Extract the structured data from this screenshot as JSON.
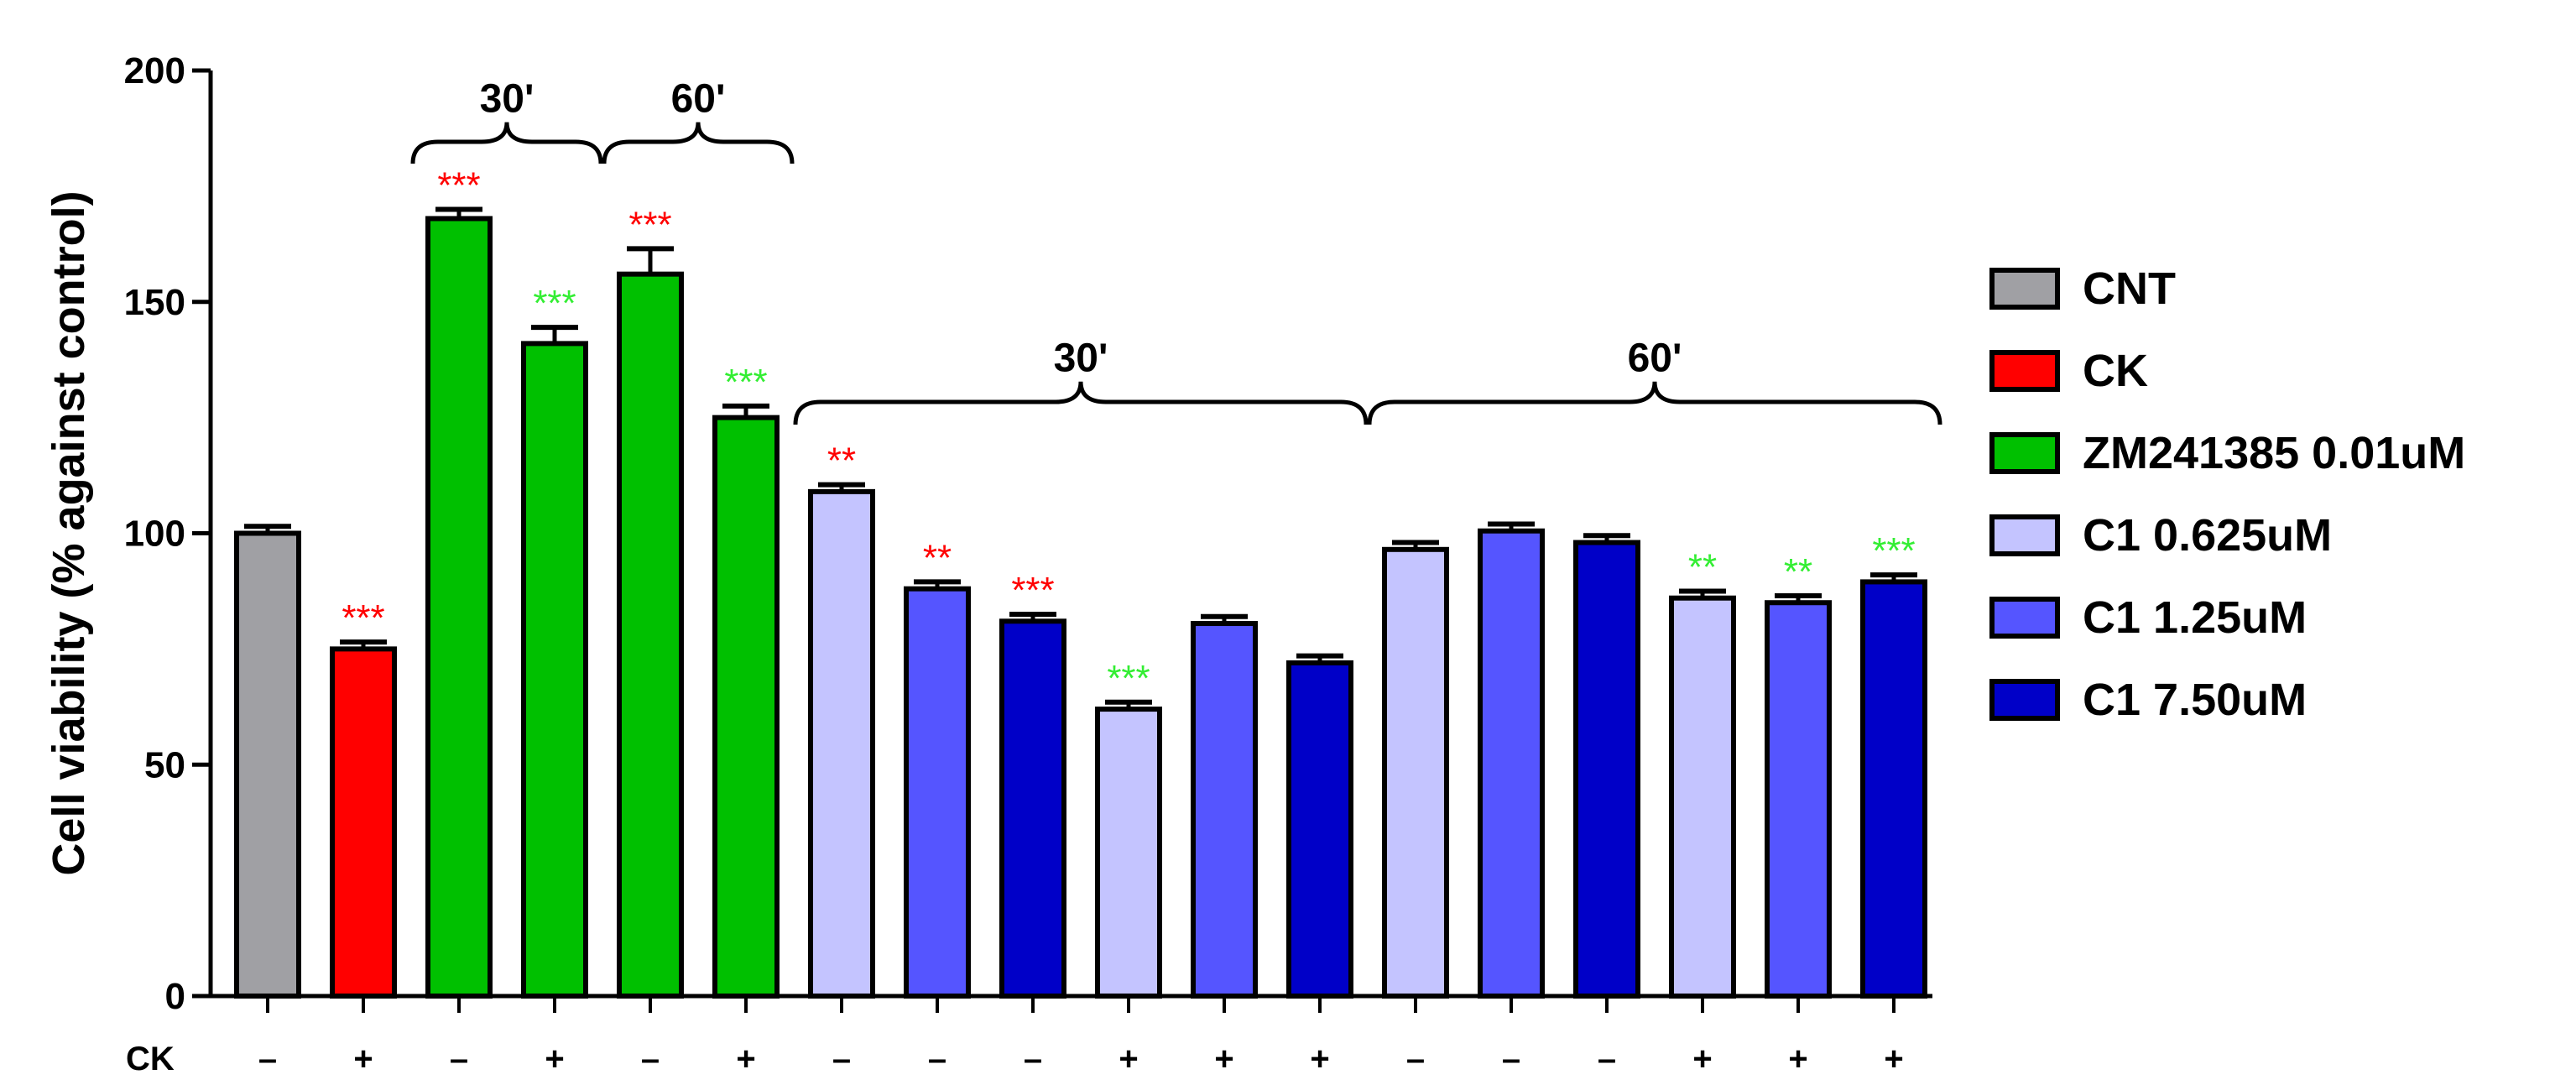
{
  "chart_data": {
    "type": "bar",
    "ylabel": "Cell viability (% against control)",
    "ylim": [
      0,
      200
    ],
    "yticks": [
      0,
      50,
      100,
      150,
      200
    ],
    "row_label": "CK",
    "bars": [
      {
        "value": 100,
        "error": 1.5,
        "color": "#a0a0a4",
        "ck": "–",
        "sig": "",
        "sig_color": ""
      },
      {
        "value": 75,
        "error": 1.5,
        "color": "#ff0000",
        "ck": "+",
        "sig": "***",
        "sig_color": "#ff0000"
      },
      {
        "value": 168,
        "error": 2,
        "color": "#00c000",
        "ck": "–",
        "sig": "***",
        "sig_color": "#ff0000"
      },
      {
        "value": 141,
        "error": 3.5,
        "color": "#00c000",
        "ck": "+",
        "sig": "***",
        "sig_color": "#33ee33"
      },
      {
        "value": 156,
        "error": 5.5,
        "color": "#00c000",
        "ck": "–",
        "sig": "***",
        "sig_color": "#ff0000"
      },
      {
        "value": 125,
        "error": 2.5,
        "color": "#00c000",
        "ck": "+",
        "sig": "***",
        "sig_color": "#33ee33"
      },
      {
        "value": 109,
        "error": 1.5,
        "color": "#c4c4ff",
        "ck": "–",
        "sig": "**",
        "sig_color": "#ff0000"
      },
      {
        "value": 88,
        "error": 1.5,
        "color": "#5555ff",
        "ck": "–",
        "sig": "**",
        "sig_color": "#ff0000"
      },
      {
        "value": 81,
        "error": 1.5,
        "color": "#0000c8",
        "ck": "–",
        "sig": "***",
        "sig_color": "#ff0000"
      },
      {
        "value": 62,
        "error": 1.5,
        "color": "#c4c4ff",
        "ck": "+",
        "sig": "***",
        "sig_color": "#33ee33"
      },
      {
        "value": 80.5,
        "error": 1.5,
        "color": "#5555ff",
        "ck": "+",
        "sig": "",
        "sig_color": ""
      },
      {
        "value": 72,
        "error": 1.5,
        "color": "#0000c8",
        "ck": "+",
        "sig": "",
        "sig_color": ""
      },
      {
        "value": 96.5,
        "error": 1.5,
        "color": "#c4c4ff",
        "ck": "–",
        "sig": "",
        "sig_color": ""
      },
      {
        "value": 100.5,
        "error": 1.5,
        "color": "#5555ff",
        "ck": "–",
        "sig": "",
        "sig_color": ""
      },
      {
        "value": 98,
        "error": 1.5,
        "color": "#0000c8",
        "ck": "–",
        "sig": "",
        "sig_color": ""
      },
      {
        "value": 86,
        "error": 1.5,
        "color": "#c4c4ff",
        "ck": "+",
        "sig": "**",
        "sig_color": "#33ee33"
      },
      {
        "value": 85,
        "error": 1.5,
        "color": "#5555ff",
        "ck": "+",
        "sig": "**",
        "sig_color": "#33ee33"
      },
      {
        "value": 89.5,
        "error": 1.5,
        "color": "#0000c8",
        "ck": "+",
        "sig": "***",
        "sig_color": "#33ee33"
      }
    ],
    "brackets": [
      {
        "label": "30'",
        "from_bar": 2,
        "to_bar": 3
      },
      {
        "label": "60'",
        "from_bar": 4,
        "to_bar": 5
      },
      {
        "label": "30'",
        "from_bar": 6,
        "to_bar": 11
      },
      {
        "label": "60'",
        "from_bar": 12,
        "to_bar": 17
      }
    ],
    "legend": [
      {
        "bold": "CNT",
        "rest": "",
        "color": "#a0a0a4"
      },
      {
        "bold": "CK",
        "rest": "",
        "color": "#ff0000"
      },
      {
        "bold": "ZM241385",
        "rest": " 0.01uM",
        "color": "#00c000"
      },
      {
        "bold": "C1",
        "rest": " 0.625uM",
        "color": "#c4c4ff"
      },
      {
        "bold": "C1",
        "rest": " 1.25uM",
        "color": "#5555ff"
      },
      {
        "bold": "C1",
        "rest": " 7.50uM",
        "color": "#0000c8"
      }
    ]
  }
}
